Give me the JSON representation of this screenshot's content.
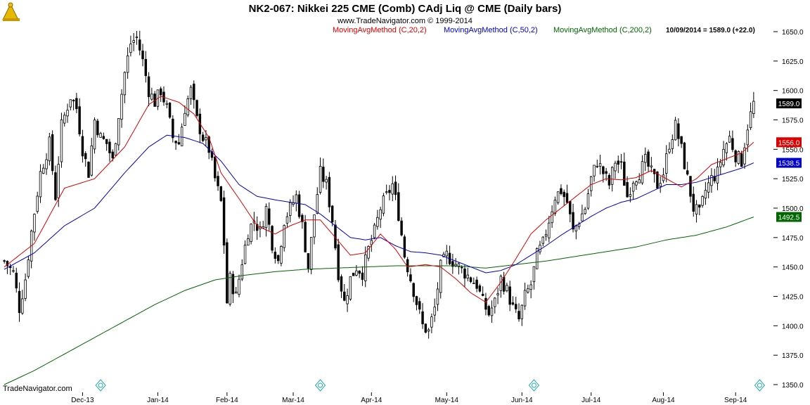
{
  "header": {
    "title": "NK2-067:  Nikkei 225 CME (Comb) CAdj Liq @ CME  (Daily bars)",
    "copyright": "www.TradeNavigator.com © 1999-2014",
    "last_quote": "10/09/2014 = 1589.0 (+22.0)",
    "watermark": "TradeNavigator.com"
  },
  "colors": {
    "ma20": "#dd0000",
    "ma50": "#0000cc",
    "ma200": "#006600",
    "price_tag": "#000000",
    "ticks_bg": "#ffffff"
  },
  "icons": [
    "logo-icon",
    "event-marker-icon"
  ],
  "chart_data": {
    "type": "candlestick",
    "title": "NK2-067:  Nikkei 225 CME (Comb) CAdj Liq @ CME  (Daily bars)",
    "ylim": [
      1350,
      1650
    ],
    "yticks": [
      1650,
      1625,
      1600,
      1575,
      1550,
      1525,
      1500,
      1475,
      1450,
      1425,
      1400,
      1375,
      1350
    ],
    "ytick_labels": [
      "1650.0",
      "1625.0",
      "1600.0",
      "1575.0",
      "1550.0",
      "1525.0",
      "1500.0",
      "1475.0",
      "1450.0",
      "1425.0",
      "1400.0",
      "1375.0",
      "1350.0"
    ],
    "xtick_labels": [
      "Dec-13",
      "Jan-14",
      "Feb-14",
      "Mar-14",
      "Apr-14",
      "May-14",
      "Jun-14",
      "Jul-14",
      "Aug-14",
      "Sep-14"
    ],
    "xtick_bars": [
      26,
      51,
      74,
      96,
      122,
      147,
      172,
      195,
      219,
      243
    ],
    "event_marker_bars": [
      32,
      105,
      176,
      251
    ],
    "grid": false,
    "legend_placement": "top",
    "series": [
      {
        "name": "MovingAvgMethod (C,20,2)",
        "key": "ma20",
        "last_value": 1556.0,
        "last_label": "1556.0",
        "anchors": [
          [
            0,
            1450
          ],
          [
            10,
            1470
          ],
          [
            20,
            1517
          ],
          [
            30,
            1525
          ],
          [
            40,
            1552
          ],
          [
            48,
            1588
          ],
          [
            52,
            1595
          ],
          [
            58,
            1590
          ],
          [
            63,
            1580
          ],
          [
            68,
            1560
          ],
          [
            72,
            1530
          ],
          [
            78,
            1508
          ],
          [
            84,
            1485
          ],
          [
            90,
            1478
          ],
          [
            95,
            1485
          ],
          [
            100,
            1490
          ],
          [
            105,
            1490
          ],
          [
            110,
            1475
          ],
          [
            115,
            1460
          ],
          [
            120,
            1462
          ],
          [
            125,
            1478
          ],
          [
            130,
            1465
          ],
          [
            134,
            1450
          ],
          [
            140,
            1452
          ],
          [
            145,
            1450
          ],
          [
            150,
            1440
          ],
          [
            155,
            1428
          ],
          [
            160,
            1420
          ],
          [
            165,
            1437
          ],
          [
            170,
            1457
          ],
          [
            175,
            1478
          ],
          [
            180,
            1490
          ],
          [
            185,
            1500
          ],
          [
            190,
            1510
          ],
          [
            195,
            1520
          ],
          [
            200,
            1525
          ],
          [
            205,
            1524
          ],
          [
            210,
            1526
          ],
          [
            215,
            1532
          ],
          [
            220,
            1525
          ],
          [
            225,
            1518
          ],
          [
            230,
            1525
          ],
          [
            235,
            1537
          ],
          [
            240,
            1542
          ],
          [
            245,
            1547
          ],
          [
            249,
            1556
          ]
        ]
      },
      {
        "name": "MovingAvgMethod (C,50,2)",
        "key": "ma50",
        "last_value": 1538.5,
        "last_label": "1538.5",
        "anchors": [
          [
            0,
            1448
          ],
          [
            10,
            1462
          ],
          [
            20,
            1485
          ],
          [
            30,
            1500
          ],
          [
            40,
            1530
          ],
          [
            48,
            1552
          ],
          [
            54,
            1562
          ],
          [
            60,
            1560
          ],
          [
            66,
            1555
          ],
          [
            72,
            1540
          ],
          [
            78,
            1520
          ],
          [
            84,
            1510
          ],
          [
            90,
            1507
          ],
          [
            95,
            1505
          ],
          [
            100,
            1503
          ],
          [
            105,
            1495
          ],
          [
            110,
            1485
          ],
          [
            115,
            1475
          ],
          [
            120,
            1473
          ],
          [
            125,
            1475
          ],
          [
            130,
            1468
          ],
          [
            135,
            1463
          ],
          [
            140,
            1462
          ],
          [
            145,
            1460
          ],
          [
            150,
            1455
          ],
          [
            155,
            1450
          ],
          [
            160,
            1445
          ],
          [
            165,
            1447
          ],
          [
            170,
            1452
          ],
          [
            175,
            1460
          ],
          [
            180,
            1468
          ],
          [
            185,
            1477
          ],
          [
            190,
            1485
          ],
          [
            195,
            1493
          ],
          [
            200,
            1500
          ],
          [
            205,
            1505
          ],
          [
            210,
            1508
          ],
          [
            215,
            1514
          ],
          [
            220,
            1520
          ],
          [
            225,
            1520
          ],
          [
            230,
            1522
          ],
          [
            235,
            1526
          ],
          [
            240,
            1530
          ],
          [
            245,
            1534
          ],
          [
            249,
            1538.5
          ]
        ]
      },
      {
        "name": "MovingAvgMethod (C,200,2)",
        "key": "ma200",
        "last_value": 1492.5,
        "last_label": "1492.5",
        "anchors": [
          [
            0,
            1350
          ],
          [
            10,
            1362
          ],
          [
            20,
            1376
          ],
          [
            30,
            1390
          ],
          [
            40,
            1404
          ],
          [
            50,
            1418
          ],
          [
            60,
            1430
          ],
          [
            70,
            1439
          ],
          [
            80,
            1443
          ],
          [
            90,
            1446
          ],
          [
            100,
            1448
          ],
          [
            110,
            1449
          ],
          [
            120,
            1450
          ],
          [
            130,
            1451
          ],
          [
            140,
            1451
          ],
          [
            150,
            1451
          ],
          [
            160,
            1449
          ],
          [
            170,
            1452
          ],
          [
            180,
            1455
          ],
          [
            190,
            1459
          ],
          [
            200,
            1463
          ],
          [
            210,
            1467
          ],
          [
            220,
            1473
          ],
          [
            230,
            1477
          ],
          [
            240,
            1484
          ],
          [
            249,
            1492.5
          ]
        ]
      },
      {
        "name": "Price",
        "key": "price",
        "last_value": 1589.0,
        "last_label": "1589.0",
        "anchors": [
          [
            0,
            1455
          ],
          [
            3,
            1445
          ],
          [
            5,
            1415
          ],
          [
            7,
            1440
          ],
          [
            9,
            1480
          ],
          [
            12,
            1530
          ],
          [
            15,
            1555
          ],
          [
            17,
            1510
          ],
          [
            19,
            1570
          ],
          [
            22,
            1595
          ],
          [
            24,
            1585
          ],
          [
            26,
            1550
          ],
          [
            28,
            1530
          ],
          [
            30,
            1575
          ],
          [
            32,
            1560
          ],
          [
            34,
            1555
          ],
          [
            36,
            1540
          ],
          [
            38,
            1580
          ],
          [
            40,
            1615
          ],
          [
            42,
            1640
          ],
          [
            44,
            1645
          ],
          [
            46,
            1625
          ],
          [
            48,
            1600
          ],
          [
            50,
            1590
          ],
          [
            52,
            1600
          ],
          [
            54,
            1585
          ],
          [
            56,
            1560
          ],
          [
            58,
            1555
          ],
          [
            60,
            1585
          ],
          [
            62,
            1600
          ],
          [
            64,
            1575
          ],
          [
            66,
            1560
          ],
          [
            68,
            1550
          ],
          [
            70,
            1525
          ],
          [
            72,
            1505
          ],
          [
            73,
            1470
          ],
          [
            74,
            1420
          ],
          [
            75,
            1440
          ],
          [
            77,
            1425
          ],
          [
            79,
            1455
          ],
          [
            81,
            1480
          ],
          [
            83,
            1490
          ],
          [
            85,
            1480
          ],
          [
            87,
            1500
          ],
          [
            89,
            1470
          ],
          [
            91,
            1455
          ],
          [
            93,
            1490
          ],
          [
            95,
            1500
          ],
          [
            97,
            1510
          ],
          [
            99,
            1485
          ],
          [
            101,
            1450
          ],
          [
            103,
            1495
          ],
          [
            105,
            1530
          ],
          [
            107,
            1520
          ],
          [
            109,
            1490
          ],
          [
            111,
            1445
          ],
          [
            113,
            1420
          ],
          [
            115,
            1440
          ],
          [
            117,
            1450
          ],
          [
            119,
            1445
          ],
          [
            121,
            1465
          ],
          [
            123,
            1480
          ],
          [
            125,
            1500
          ],
          [
            127,
            1510
          ],
          [
            129,
            1520
          ],
          [
            131,
            1495
          ],
          [
            133,
            1460
          ],
          [
            135,
            1440
          ],
          [
            137,
            1420
          ],
          [
            139,
            1400
          ],
          [
            141,
            1395
          ],
          [
            143,
            1415
          ],
          [
            145,
            1450
          ],
          [
            147,
            1460
          ],
          [
            149,
            1455
          ],
          [
            151,
            1450
          ],
          [
            153,
            1445
          ],
          [
            155,
            1440
          ],
          [
            157,
            1435
          ],
          [
            159,
            1420
          ],
          [
            161,
            1410
          ],
          [
            163,
            1420
          ],
          [
            165,
            1440
          ],
          [
            167,
            1430
          ],
          [
            169,
            1415
          ],
          [
            171,
            1405
          ],
          [
            173,
            1425
          ],
          [
            175,
            1435
          ],
          [
            177,
            1460
          ],
          [
            179,
            1470
          ],
          [
            181,
            1490
          ],
          [
            183,
            1510
          ],
          [
            185,
            1515
          ],
          [
            187,
            1505
          ],
          [
            189,
            1480
          ],
          [
            191,
            1490
          ],
          [
            193,
            1500
          ],
          [
            195,
            1525
          ],
          [
            197,
            1540
          ],
          [
            199,
            1530
          ],
          [
            201,
            1520
          ],
          [
            203,
            1540
          ],
          [
            205,
            1535
          ],
          [
            207,
            1510
          ],
          [
            209,
            1525
          ],
          [
            211,
            1530
          ],
          [
            213,
            1540
          ],
          [
            215,
            1530
          ],
          [
            217,
            1520
          ],
          [
            219,
            1530
          ],
          [
            221,
            1555
          ],
          [
            223,
            1570
          ],
          [
            225,
            1550
          ],
          [
            227,
            1525
          ],
          [
            229,
            1500
          ],
          [
            231,
            1495
          ],
          [
            233,
            1515
          ],
          [
            235,
            1525
          ],
          [
            237,
            1530
          ],
          [
            239,
            1550
          ],
          [
            241,
            1560
          ],
          [
            243,
            1545
          ],
          [
            245,
            1540
          ],
          [
            247,
            1570
          ],
          [
            249,
            1589
          ]
        ]
      }
    ]
  }
}
